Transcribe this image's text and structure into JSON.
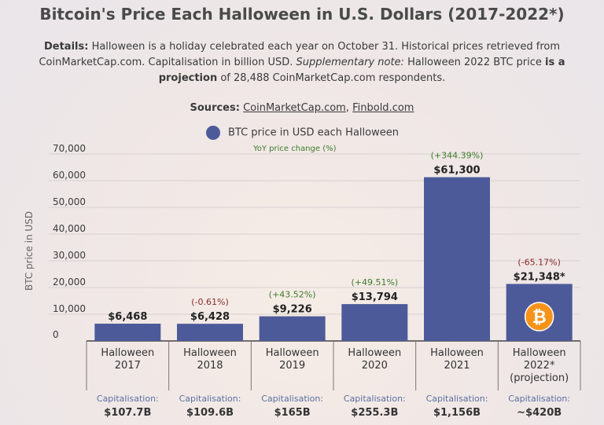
{
  "title": "Bitcoin's Price Each Halloween in U.S. Dollars (2017-2022*)",
  "details": {
    "label": "Details:",
    "text1": " Halloween is a holiday celebrated each year on October 31. Historical prices retrieved from CoinMarketCap.com. Capitalisation in billion USD. ",
    "supp_label": "Supplementary note:",
    "text2": " Halloween 2022 BTC price ",
    "bold2": "is a projection",
    "text3": " of 28,488 CoinMarketCap.com respondents."
  },
  "sources": {
    "label": "Sources:",
    "src1": "CoinMarketCap.com",
    "sep": ", ",
    "src2": "Finbold.com"
  },
  "legend": {
    "series": "BTC price in USD each Halloween",
    "sub": "YoY price change (%)"
  },
  "colors": {
    "bar": "#4d5a9a",
    "positive": "#3d7a2a",
    "negative": "#8a2a2a",
    "cap_label": "#5a6fa0",
    "bitcoin": "#f7931a"
  },
  "icon": "bitcoin-icon",
  "chart_data": {
    "type": "bar",
    "ylabel": "BTC price in USD",
    "ylim": [
      0,
      70000
    ],
    "yticks": [
      "0",
      "10,000",
      "20,000",
      "30,000",
      "40,000",
      "50,000",
      "60,000",
      "70,000"
    ],
    "ytick_values": [
      0,
      10000,
      20000,
      30000,
      40000,
      50000,
      60000,
      70000
    ],
    "categories": [
      [
        "Halloween",
        "2017"
      ],
      [
        "Halloween",
        "2018"
      ],
      [
        "Halloween",
        "2019"
      ],
      [
        "Halloween",
        "2020"
      ],
      [
        "Halloween",
        "2021"
      ],
      [
        "Halloween",
        "2022*",
        "(projection)"
      ]
    ],
    "values": [
      6468,
      6428,
      9226,
      13794,
      61300,
      21348
    ],
    "value_labels": [
      "$6,468",
      "$6,428",
      "$9,226",
      "$13,794",
      "$61,300",
      "$21,348*"
    ],
    "yoy_changes": [
      "",
      "(-0.61%)",
      "(+43.52%)",
      "(+49.51%)",
      "(+344.39%)",
      "(-65.17%)"
    ],
    "yoy_sign": [
      "",
      "neg",
      "pos",
      "pos",
      "pos",
      "neg"
    ],
    "capitalisation_label": "Capitalisation:",
    "capitalisation": [
      "$107.7B",
      "$109.6B",
      "$165B",
      "$255.3B",
      "$1,156B",
      "~$420B"
    ]
  }
}
